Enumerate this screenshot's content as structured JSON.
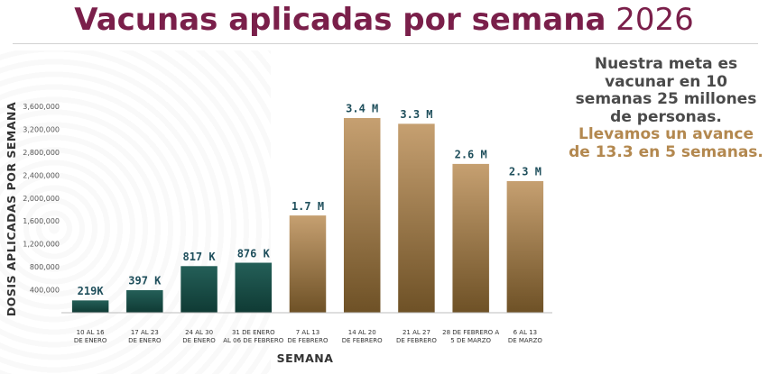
{
  "header": {
    "title_main": "Vacunas aplicadas por semana",
    "title_year": "2026"
  },
  "note": {
    "line_goal": "Nuestra meta es vacunar en 10 semanas 25 millones de personas.",
    "line_progress": "Llevamos un avance de 13.3 en 5 semanas."
  },
  "colors": {
    "title": "#7a1f4a",
    "note_text": "#4a4a4a",
    "note_highlight": "#b3884f",
    "bar_green_top": "#245f58",
    "bar_green_bottom": "#0f3a34",
    "bar_gold_top": "#c6a071",
    "bar_gold_bottom": "#6e5126",
    "bar_label": "#1f4f5c"
  },
  "chart_data": {
    "type": "bar",
    "title": "Vacunas aplicadas por semana 2026",
    "xlabel": "SEMANA",
    "ylabel": "DOSIS APLICADAS POR SEMANA",
    "ylim": [
      0,
      3600000
    ],
    "yticks": [
      400000,
      800000,
      1200000,
      1600000,
      2000000,
      2400000,
      2800000,
      3200000,
      3600000
    ],
    "ytick_labels": [
      "400,000",
      "800,000",
      "1,200,000",
      "1,600,000",
      "2,000,000",
      "2,400,000",
      "2,800,000",
      "3,200,000",
      "3,600,000"
    ],
    "categories": [
      [
        "10 AL 16",
        "DE ENERO"
      ],
      [
        "17 AL 23",
        "DE ENERO"
      ],
      [
        "24 AL 30",
        "DE ENERO"
      ],
      [
        "31 DE ENERO",
        "AL 06 DE FEBRERO"
      ],
      [
        "7 AL 13",
        "DE FEBRERO"
      ],
      [
        "14 AL 20",
        "DE FEBRERO"
      ],
      [
        "21 AL 27",
        "DE FEBRERO"
      ],
      [
        "28 DE FEBRERO A",
        "5 DE MARZO"
      ],
      [
        "6 AL 13",
        "DE MARZO"
      ]
    ],
    "values": [
      219000,
      397000,
      817000,
      876000,
      1700000,
      3400000,
      3300000,
      2600000,
      2300000
    ],
    "data_labels": [
      "219K",
      "397 K",
      "817 K",
      "876 K",
      "1.7 M",
      "3.4 M",
      "3.3 M",
      "2.6 M",
      "2.3 M"
    ],
    "bar_color_groups": [
      "green",
      "green",
      "green",
      "green",
      "gold",
      "gold",
      "gold",
      "gold",
      "gold"
    ],
    "grid": false,
    "legend": "none"
  }
}
